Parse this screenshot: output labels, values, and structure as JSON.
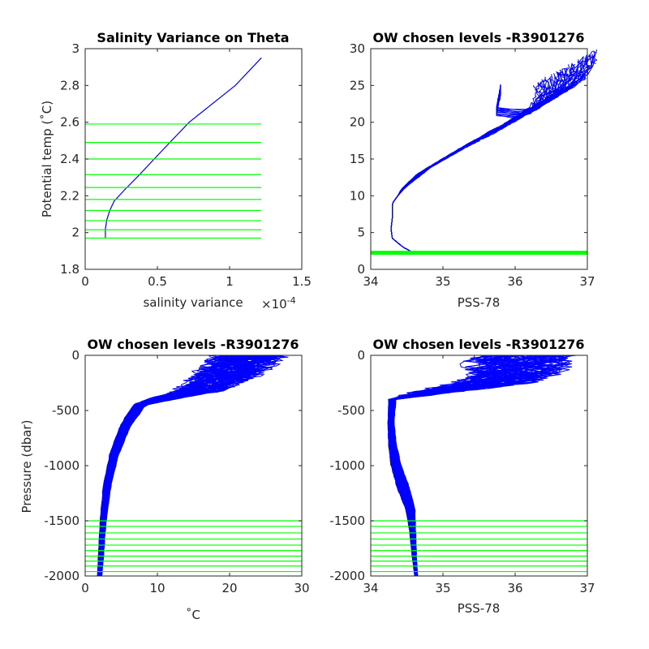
{
  "colors": {
    "profile": "#0000ff",
    "levels": "#00ff00",
    "axes": "#262626",
    "background": "#ffffff"
  },
  "chart_data": [
    {
      "type": "line",
      "title": "Salinity Variance on Theta",
      "xlabel": "salinity variance",
      "x_exponent": "×10",
      "x_exponent_power": "-4",
      "ylabel": "Potential temp (˚C)",
      "xlim": [
        0,
        1.5
      ],
      "ylim": [
        1.8,
        3
      ],
      "xticks": [
        "0",
        "0.5",
        "1",
        "1.5"
      ],
      "yticks": [
        "1.8",
        "2",
        "2.2",
        "2.4",
        "2.6",
        "2.8",
        "3"
      ],
      "series": [
        {
          "values": [
            [
              0.14,
              1.97
            ],
            [
              0.14,
              2.02
            ],
            [
              0.15,
              2.07
            ],
            [
              0.17,
              2.12
            ],
            [
              0.2,
              2.17
            ],
            [
              0.27,
              2.23
            ],
            [
              0.37,
              2.31
            ],
            [
              0.55,
              2.46
            ],
            [
              0.72,
              2.6
            ],
            [
              1.04,
              2.8
            ],
            [
              1.22,
              2.95
            ]
          ]
        }
      ],
      "chosen_levels": {
        "x_range": [
          0,
          1.22
        ],
        "y": [
          1.97,
          2.015,
          2.065,
          2.12,
          2.18,
          2.245,
          2.315,
          2.4,
          2.49,
          2.59
        ]
      }
    },
    {
      "type": "line",
      "title": "OW chosen levels -R3901276",
      "xlabel": "PSS-78",
      "ylabel": "",
      "xlim": [
        34,
        37
      ],
      "ylim": [
        0,
        30
      ],
      "xticks": [
        "34",
        "35",
        "36",
        "37"
      ],
      "yticks": [
        "0",
        "5",
        "10",
        "15",
        "20",
        "25",
        "30"
      ],
      "envelope": {
        "center": [
          [
            34.6,
            2.2
          ],
          [
            34.45,
            3.0
          ],
          [
            34.3,
            4.2
          ],
          [
            34.28,
            5.5
          ],
          [
            34.3,
            7.0
          ],
          [
            34.3,
            9.0
          ],
          [
            34.45,
            11.0
          ],
          [
            34.75,
            13.5
          ],
          [
            35.1,
            15.5
          ],
          [
            35.45,
            17.5
          ],
          [
            35.85,
            19.5
          ],
          [
            36.2,
            21.5
          ],
          [
            36.5,
            23.5
          ],
          [
            36.6,
            25.2
          ],
          [
            36.6,
            26.8
          ]
        ],
        "spread_start": [
          34.3,
          25.2
        ]
      },
      "chosen_levels": {
        "y": [
          2.05,
          2.15,
          2.25,
          2.35,
          2.45
        ]
      }
    },
    {
      "type": "line",
      "title": "OW chosen levels -R3901276",
      "xlabel": "˚C",
      "ylabel": "Pressure (dbar)",
      "xlim": [
        0,
        30
      ],
      "ylim": [
        -2000,
        0
      ],
      "xticks": [
        "0",
        "10",
        "20",
        "30"
      ],
      "yticks": [
        "-2000",
        "-1500",
        "-1000",
        "-500",
        "0"
      ],
      "envelope": {
        "center": [
          [
            2.0,
            -2000
          ],
          [
            2.2,
            -1800
          ],
          [
            2.5,
            -1500
          ],
          [
            3.0,
            -1200
          ],
          [
            4.0,
            -900
          ],
          [
            5.5,
            -650
          ],
          [
            7.5,
            -450
          ],
          [
            11,
            -390
          ],
          [
            16,
            -320
          ],
          [
            19,
            -200
          ],
          [
            21,
            -100
          ],
          [
            23,
            0
          ]
        ],
        "width": [
          0.3,
          0.35,
          0.4,
          0.5,
          0.6,
          0.7,
          0.9,
          2.0,
          3.0,
          3.5,
          4.0,
          4.5
        ]
      },
      "chosen_levels": {
        "y": [
          -1500,
          -1550,
          -1610,
          -1665,
          -1720,
          -1770,
          -1820,
          -1865,
          -1910,
          -1960
        ]
      }
    },
    {
      "type": "line",
      "title": "OW chosen levels -R3901276",
      "xlabel": "PSS-78",
      "ylabel": "",
      "xlim": [
        34,
        37
      ],
      "ylim": [
        -2000,
        0
      ],
      "xticks": [
        "34",
        "35",
        "36",
        "37"
      ],
      "yticks": [
        "-2000",
        "-1500",
        "-1000",
        "-500",
        "0"
      ],
      "envelope": {
        "center": [
          [
            34.63,
            -2000
          ],
          [
            34.6,
            -1800
          ],
          [
            34.58,
            -1600
          ],
          [
            34.55,
            -1400
          ],
          [
            34.45,
            -1200
          ],
          [
            34.35,
            -1000
          ],
          [
            34.3,
            -800
          ],
          [
            34.28,
            -600
          ],
          [
            34.3,
            -400
          ],
          [
            34.9,
            -330
          ],
          [
            35.7,
            -250
          ],
          [
            36.0,
            -150
          ],
          [
            36.1,
            0
          ]
        ],
        "width": [
          0.02,
          0.03,
          0.04,
          0.06,
          0.08,
          0.07,
          0.05,
          0.04,
          0.05,
          0.25,
          0.45,
          0.55,
          0.6
        ]
      },
      "chosen_levels": {
        "y": [
          -1500,
          -1550,
          -1610,
          -1665,
          -1720,
          -1770,
          -1820,
          -1865,
          -1910,
          -1960
        ]
      }
    }
  ]
}
